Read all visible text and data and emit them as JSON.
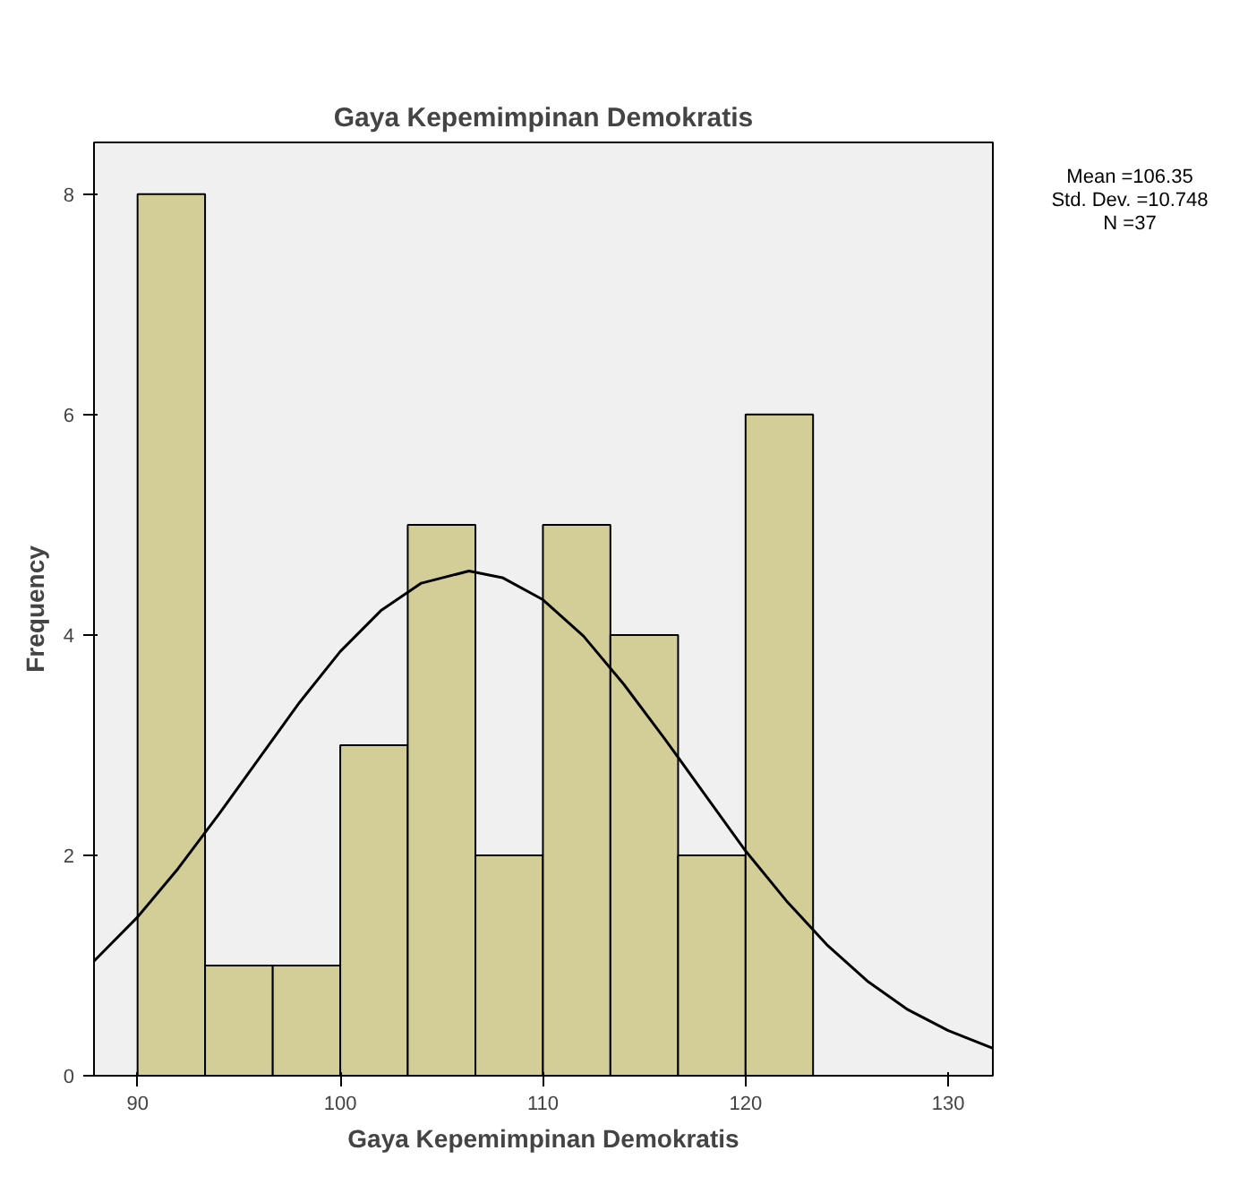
{
  "chart_data": {
    "type": "histogram",
    "title": "Gaya Kepemimpinan Demokratis",
    "xlabel": "Gaya Kepemimpinan Demokratis",
    "ylabel": "Frequency",
    "series": [
      {
        "color": "#d3ce97",
        "bins": [
          90,
          93.33,
          96.67,
          100,
          103.33,
          106.67,
          110,
          113.33,
          116.67,
          120,
          123.33
        ],
        "values": [
          8,
          1,
          1,
          3,
          5,
          2,
          5,
          4,
          2,
          6
        ]
      },
      {
        "type": "line",
        "color": "#000000",
        "x": [
          87.85,
          90,
          92,
          94,
          96,
          98,
          100,
          102,
          104,
          106.35,
          108,
          110,
          112,
          114,
          116,
          118,
          120,
          122,
          124,
          126,
          128,
          130,
          132.2
        ],
        "values": [
          1.04,
          1.44,
          1.88,
          2.37,
          2.88,
          3.39,
          3.85,
          4.22,
          4.47,
          4.58,
          4.52,
          4.32,
          3.99,
          3.55,
          3.06,
          2.55,
          2.04,
          1.59,
          1.19,
          0.86,
          0.6,
          0.41,
          0.25
        ]
      }
    ],
    "xlim": [
      87.85,
      132.2
    ],
    "ylim": [
      0,
      8.47
    ],
    "xticks": [
      90,
      100,
      110,
      120,
      130
    ],
    "yticks": [
      0,
      2,
      4,
      6,
      8
    ],
    "grid": false,
    "annotations": [
      "Mean =106.35",
      "Std. Dev. =10.748",
      "N =37"
    ]
  }
}
